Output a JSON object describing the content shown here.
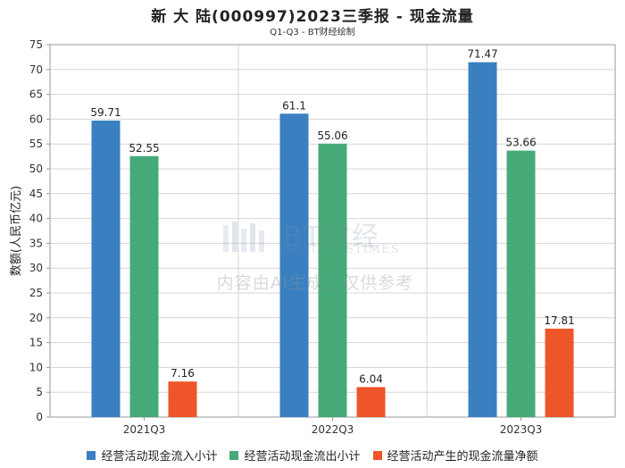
{
  "chart_data": {
    "type": "bar",
    "title": "新 大 陆(000997)2023三季报 - 现金流量",
    "subtitle": "Q1-Q3 - BT财经绘制",
    "ylabel": "数额(人民币亿元)",
    "xlabel": "",
    "categories": [
      "2021Q3",
      "2022Q3",
      "2023Q3"
    ],
    "ylim": [
      0,
      75
    ],
    "yticks": [
      0,
      5,
      10,
      15,
      20,
      25,
      30,
      35,
      40,
      45,
      50,
      55,
      60,
      65,
      70,
      75
    ],
    "grid": true,
    "legend_position": "bottom",
    "series": [
      {
        "name": "经营活动现金流入小计",
        "color": "#3a80c0",
        "values": [
          59.71,
          61.1,
          71.47
        ],
        "labels": [
          "59.71",
          "61.1",
          "71.47"
        ]
      },
      {
        "name": "经营活动现金流出小计",
        "color": "#46aa78",
        "values": [
          52.55,
          55.06,
          53.66
        ],
        "labels": [
          "52.55",
          "55.06",
          "53.66"
        ]
      },
      {
        "name": "经营活动产生的现金流量净额",
        "color": "#ee5528",
        "values": [
          7.16,
          6.04,
          17.81
        ],
        "labels": [
          "7.16",
          "6.04",
          "17.81"
        ]
      }
    ]
  },
  "watermark": {
    "brand": "BT财经",
    "brand_sub": "BUSINESSTIMES",
    "ai_notice": "内容由AI生成，仅供参考"
  }
}
